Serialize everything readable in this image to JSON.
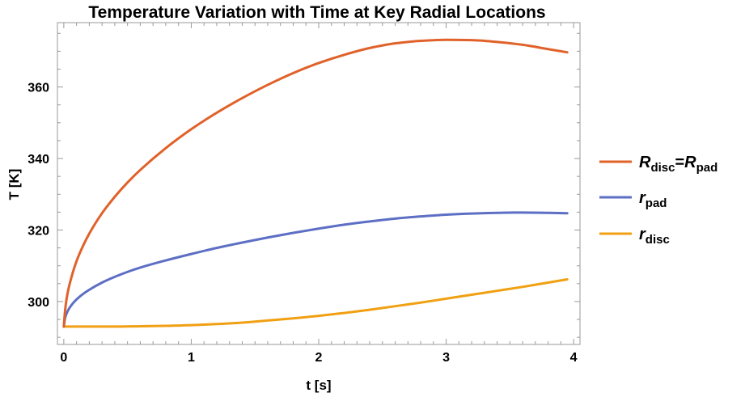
{
  "chart_data": {
    "type": "line",
    "title": "Temperature Variation with Time at Key Radial Locations",
    "xlabel": "t [s]",
    "ylabel": "T [K]",
    "xlim": [
      -0.05,
      4.05
    ],
    "ylim": [
      288,
      378
    ],
    "xticks": [
      0,
      1,
      2,
      3,
      4
    ],
    "yticks": [
      300,
      320,
      340,
      360
    ],
    "grid": false,
    "legend_position": "right",
    "series": [
      {
        "name": "R_disc=R_pad",
        "legend": {
          "main1": "R",
          "sub1": "disc",
          "eq": "=",
          "main2": "R",
          "sub2": "pad"
        },
        "color": "#e0622a",
        "x": [
          0,
          0.01,
          0.03,
          0.06,
          0.1,
          0.15,
          0.2,
          0.3,
          0.4,
          0.5,
          0.6,
          0.8,
          1.0,
          1.2,
          1.4,
          1.6,
          1.8,
          2.0,
          2.2,
          2.4,
          2.6,
          2.8,
          3.0,
          3.2,
          3.4,
          3.6,
          3.8,
          3.95
        ],
        "y": [
          293,
          297.5,
          302.4,
          306.8,
          311.3,
          315.5,
          319.0,
          324.7,
          329.3,
          333.3,
          336.8,
          342.9,
          348.2,
          352.8,
          356.9,
          360.6,
          363.9,
          366.7,
          369.0,
          370.9,
          372.2,
          372.9,
          373.2,
          373.1,
          372.6,
          371.8,
          370.6,
          369.7
        ]
      },
      {
        "name": "r_pad",
        "legend": {
          "main1": "r",
          "sub1": "pad"
        },
        "color": "#5d6fc5",
        "x": [
          0,
          0.01,
          0.03,
          0.06,
          0.1,
          0.15,
          0.2,
          0.3,
          0.4,
          0.5,
          0.6,
          0.8,
          1.0,
          1.2,
          1.4,
          1.6,
          1.8,
          2.0,
          2.2,
          2.4,
          2.6,
          2.8,
          3.0,
          3.2,
          3.4,
          3.6,
          3.8,
          3.95
        ],
        "y": [
          293,
          295.4,
          297.3,
          299.0,
          300.6,
          302.1,
          303.3,
          305.3,
          306.9,
          308.3,
          309.5,
          311.5,
          313.3,
          315.0,
          316.5,
          317.9,
          319.2,
          320.4,
          321.5,
          322.4,
          323.2,
          323.8,
          324.3,
          324.6,
          324.8,
          324.9,
          324.8,
          324.7
        ]
      },
      {
        "name": "r_disc",
        "legend": {
          "main1": "r",
          "sub1": "disc"
        },
        "color": "#f0a012",
        "x": [
          0,
          0.2,
          0.4,
          0.6,
          0.8,
          1.0,
          1.2,
          1.4,
          1.6,
          1.8,
          2.0,
          2.2,
          2.4,
          2.6,
          2.8,
          3.0,
          3.2,
          3.4,
          3.6,
          3.8,
          3.95
        ],
        "y": [
          293,
          293.0,
          293.0,
          293.1,
          293.2,
          293.4,
          293.7,
          294.1,
          294.7,
          295.3,
          296.0,
          296.8,
          297.7,
          298.7,
          299.7,
          300.8,
          301.9,
          303.0,
          304.1,
          305.3,
          306.2
        ]
      }
    ]
  }
}
